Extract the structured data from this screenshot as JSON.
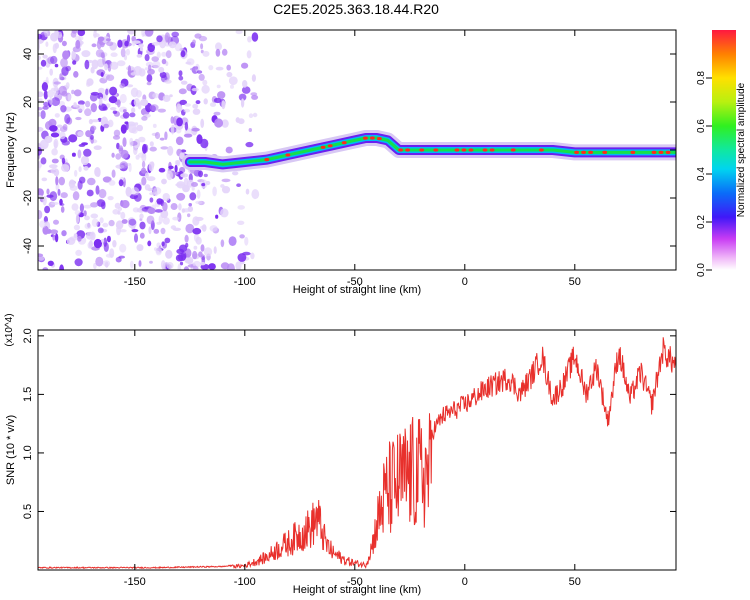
{
  "title": "C2E5.2025.363.18.44.R20",
  "colors": {
    "snr_line": "#e8302c",
    "ridge_outer": "#d8c8f4",
    "ridge_mid": "#6a1ff0",
    "ridge_core": "#14e04a",
    "ridge_peak": "#ff2a1a",
    "noise": "#7a2cf0"
  },
  "chart_data": [
    {
      "type": "heatmap",
      "name": "spectrogram",
      "xlabel": "Height of straight line (km)",
      "ylabel": "Frequency (Hz)",
      "xlim": [
        -194,
        96
      ],
      "ylim": [
        -50,
        50
      ],
      "xticks": [
        -150,
        -100,
        -50,
        0,
        50
      ],
      "yticks": [
        -40,
        -20,
        0,
        20,
        40
      ],
      "noise_region_km": [
        -194,
        -95
      ],
      "ridge_start_km": -125,
      "ridge": {
        "x": [
          -125,
          -118,
          -110,
          -100,
          -90,
          -80,
          -70,
          -60,
          -50,
          -45,
          -40,
          -35,
          -30,
          -25,
          -20,
          -10,
          0,
          10,
          20,
          30,
          40,
          50,
          60,
          70,
          80,
          90,
          96
        ],
        "freq": [
          -5,
          -5,
          -6,
          -5,
          -4,
          -2,
          0,
          2,
          4,
          5,
          5,
          4,
          0,
          0,
          0,
          0,
          0,
          0,
          0,
          0,
          0,
          -1,
          -1,
          -1,
          -1,
          -1,
          -1
        ]
      },
      "colorbar": {
        "label": "Normalized spectral amplitude",
        "range": [
          0,
          1
        ],
        "ticks": [
          "0.0",
          "0.2",
          "0.4",
          "0.6",
          "0.8"
        ]
      }
    },
    {
      "type": "line",
      "name": "snr",
      "xlabel": "Height of straight line (km)",
      "ylabel": "SNR (10 * v/v)",
      "y_multiplier": "(x10^4)",
      "xlim": [
        -194,
        96
      ],
      "ylim": [
        0,
        2.05
      ],
      "xticks": [
        -150,
        -100,
        -50,
        0,
        50
      ],
      "yticks": [
        0.5,
        1.0,
        1.5,
        2.0
      ],
      "x": [
        -194,
        -170,
        -140,
        -110,
        -100,
        -95,
        -90,
        -85,
        -80,
        -75,
        -70,
        -67,
        -63,
        -60,
        -55,
        -50,
        -45,
        -42,
        -38,
        -35,
        -30,
        -25,
        -20,
        -15,
        -10,
        -5,
        0,
        5,
        10,
        15,
        20,
        25,
        30,
        35,
        40,
        45,
        50,
        55,
        60,
        65,
        70,
        75,
        80,
        85,
        90,
        96
      ],
      "envelope": [
        0.02,
        0.02,
        0.02,
        0.03,
        0.05,
        0.1,
        0.15,
        0.25,
        0.32,
        0.42,
        0.5,
        0.62,
        0.3,
        0.2,
        0.12,
        0.08,
        0.06,
        0.3,
        0.8,
        1.0,
        1.1,
        1.2,
        1.2,
        1.25,
        1.4,
        1.45,
        1.5,
        1.58,
        1.65,
        1.7,
        1.75,
        1.6,
        1.75,
        1.95,
        1.55,
        1.7,
        1.95,
        1.6,
        1.85,
        1.35,
        2.0,
        1.55,
        1.8,
        1.5,
        2.0,
        1.85
      ]
    }
  ]
}
